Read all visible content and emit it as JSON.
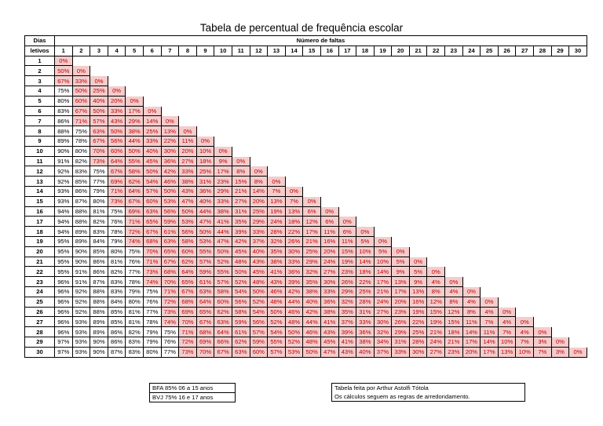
{
  "title": "Tabela de percentual de frequência escolar",
  "table": {
    "days_header_line1": "Dias",
    "days_header_line2": "letivos",
    "faltas_header": "Número de faltas",
    "columns": [
      "1",
      "2",
      "3",
      "4",
      "5",
      "6",
      "7",
      "8",
      "9",
      "10",
      "11",
      "12",
      "13",
      "14",
      "15",
      "16",
      "17",
      "18",
      "19",
      "20",
      "21",
      "22",
      "23",
      "24",
      "25",
      "26",
      "27",
      "28",
      "29",
      "30"
    ],
    "rows": [
      {
        "day": "1",
        "values": [
          "0%"
        ]
      },
      {
        "day": "2",
        "values": [
          "50%",
          "0%"
        ]
      },
      {
        "day": "3",
        "values": [
          "67%",
          "33%",
          "0%"
        ]
      },
      {
        "day": "4",
        "values": [
          "75%",
          "50%",
          "25%",
          "0%"
        ]
      },
      {
        "day": "5",
        "values": [
          "80%",
          "60%",
          "40%",
          "20%",
          "0%"
        ]
      },
      {
        "day": "6",
        "values": [
          "83%",
          "67%",
          "50%",
          "33%",
          "17%",
          "0%"
        ]
      },
      {
        "day": "7",
        "values": [
          "86%",
          "71%",
          "57%",
          "43%",
          "29%",
          "14%",
          "0%"
        ]
      },
      {
        "day": "8",
        "values": [
          "88%",
          "75%",
          "63%",
          "50%",
          "38%",
          "25%",
          "13%",
          "0%"
        ]
      },
      {
        "day": "9",
        "values": [
          "89%",
          "78%",
          "67%",
          "56%",
          "44%",
          "33%",
          "22%",
          "11%",
          "0%"
        ]
      },
      {
        "day": "10",
        "values": [
          "90%",
          "80%",
          "70%",
          "60%",
          "50%",
          "40%",
          "30%",
          "20%",
          "10%",
          "0%"
        ]
      },
      {
        "day": "11",
        "values": [
          "91%",
          "82%",
          "73%",
          "64%",
          "55%",
          "45%",
          "36%",
          "27%",
          "18%",
          "9%",
          "0%"
        ]
      },
      {
        "day": "12",
        "values": [
          "92%",
          "83%",
          "75%",
          "67%",
          "58%",
          "50%",
          "42%",
          "33%",
          "25%",
          "17%",
          "8%",
          "0%"
        ]
      },
      {
        "day": "13",
        "values": [
          "92%",
          "85%",
          "77%",
          "69%",
          "62%",
          "54%",
          "46%",
          "38%",
          "31%",
          "23%",
          "15%",
          "8%",
          "0%"
        ]
      },
      {
        "day": "14",
        "values": [
          "93%",
          "86%",
          "79%",
          "71%",
          "64%",
          "57%",
          "50%",
          "43%",
          "36%",
          "29%",
          "21%",
          "14%",
          "7%",
          "0%"
        ]
      },
      {
        "day": "15",
        "values": [
          "93%",
          "87%",
          "80%",
          "73%",
          "67%",
          "60%",
          "53%",
          "47%",
          "40%",
          "33%",
          "27%",
          "20%",
          "13%",
          "7%",
          "0%"
        ]
      },
      {
        "day": "16",
        "values": [
          "94%",
          "88%",
          "81%",
          "75%",
          "69%",
          "63%",
          "56%",
          "50%",
          "44%",
          "38%",
          "31%",
          "25%",
          "19%",
          "13%",
          "6%",
          "0%"
        ]
      },
      {
        "day": "17",
        "values": [
          "94%",
          "88%",
          "82%",
          "76%",
          "71%",
          "65%",
          "59%",
          "53%",
          "47%",
          "41%",
          "35%",
          "29%",
          "24%",
          "18%",
          "12%",
          "6%",
          "0%"
        ]
      },
      {
        "day": "18",
        "values": [
          "94%",
          "89%",
          "83%",
          "78%",
          "72%",
          "67%",
          "61%",
          "56%",
          "50%",
          "44%",
          "39%",
          "33%",
          "28%",
          "22%",
          "17%",
          "11%",
          "6%",
          "0%"
        ]
      },
      {
        "day": "19",
        "values": [
          "95%",
          "89%",
          "84%",
          "79%",
          "74%",
          "68%",
          "63%",
          "58%",
          "53%",
          "47%",
          "42%",
          "37%",
          "32%",
          "26%",
          "21%",
          "16%",
          "11%",
          "5%",
          "0%"
        ]
      },
      {
        "day": "20",
        "values": [
          "95%",
          "90%",
          "85%",
          "80%",
          "75%",
          "70%",
          "65%",
          "60%",
          "55%",
          "50%",
          "45%",
          "40%",
          "35%",
          "30%",
          "25%",
          "20%",
          "15%",
          "10%",
          "5%",
          "0%"
        ]
      },
      {
        "day": "21",
        "values": [
          "95%",
          "90%",
          "86%",
          "81%",
          "76%",
          "71%",
          "67%",
          "62%",
          "57%",
          "52%",
          "48%",
          "43%",
          "38%",
          "33%",
          "29%",
          "24%",
          "19%",
          "14%",
          "10%",
          "5%",
          "0%"
        ]
      },
      {
        "day": "22",
        "values": [
          "95%",
          "91%",
          "86%",
          "82%",
          "77%",
          "73%",
          "68%",
          "64%",
          "59%",
          "55%",
          "50%",
          "45%",
          "41%",
          "36%",
          "32%",
          "27%",
          "23%",
          "18%",
          "14%",
          "9%",
          "5%",
          "0%"
        ]
      },
      {
        "day": "23",
        "values": [
          "96%",
          "91%",
          "87%",
          "83%",
          "78%",
          "74%",
          "70%",
          "65%",
          "61%",
          "57%",
          "52%",
          "48%",
          "43%",
          "39%",
          "35%",
          "30%",
          "26%",
          "22%",
          "17%",
          "13%",
          "9%",
          "4%",
          "0%"
        ]
      },
      {
        "day": "24",
        "values": [
          "96%",
          "92%",
          "88%",
          "83%",
          "79%",
          "75%",
          "71%",
          "67%",
          "63%",
          "58%",
          "54%",
          "50%",
          "46%",
          "42%",
          "38%",
          "33%",
          "29%",
          "25%",
          "21%",
          "17%",
          "13%",
          "8%",
          "4%",
          "0%"
        ]
      },
      {
        "day": "25",
        "values": [
          "96%",
          "92%",
          "88%",
          "84%",
          "80%",
          "76%",
          "72%",
          "68%",
          "64%",
          "60%",
          "56%",
          "52%",
          "48%",
          "44%",
          "40%",
          "36%",
          "32%",
          "28%",
          "24%",
          "20%",
          "16%",
          "12%",
          "8%",
          "4%",
          "0%"
        ]
      },
      {
        "day": "26",
        "values": [
          "96%",
          "92%",
          "88%",
          "85%",
          "81%",
          "77%",
          "73%",
          "69%",
          "65%",
          "62%",
          "58%",
          "54%",
          "50%",
          "46%",
          "42%",
          "38%",
          "35%",
          "31%",
          "27%",
          "23%",
          "19%",
          "15%",
          "12%",
          "8%",
          "4%",
          "0%"
        ]
      },
      {
        "day": "27",
        "values": [
          "96%",
          "93%",
          "89%",
          "85%",
          "81%",
          "78%",
          "74%",
          "70%",
          "67%",
          "63%",
          "59%",
          "56%",
          "52%",
          "48%",
          "44%",
          "41%",
          "37%",
          "33%",
          "30%",
          "26%",
          "22%",
          "19%",
          "15%",
          "11%",
          "7%",
          "4%",
          "0%"
        ]
      },
      {
        "day": "28",
        "values": [
          "96%",
          "93%",
          "89%",
          "86%",
          "82%",
          "79%",
          "75%",
          "71%",
          "68%",
          "64%",
          "61%",
          "57%",
          "54%",
          "50%",
          "46%",
          "43%",
          "39%",
          "36%",
          "32%",
          "29%",
          "25%",
          "21%",
          "18%",
          "14%",
          "11%",
          "7%",
          "4%",
          "0%"
        ]
      },
      {
        "day": "29",
        "values": [
          "97%",
          "93%",
          "90%",
          "86%",
          "83%",
          "79%",
          "76%",
          "72%",
          "69%",
          "66%",
          "62%",
          "59%",
          "55%",
          "52%",
          "48%",
          "45%",
          "41%",
          "38%",
          "34%",
          "31%",
          "28%",
          "24%",
          "21%",
          "17%",
          "14%",
          "10%",
          "7%",
          "3%",
          "0%"
        ]
      },
      {
        "day": "30",
        "values": [
          "97%",
          "93%",
          "90%",
          "87%",
          "83%",
          "80%",
          "77%",
          "73%",
          "70%",
          "67%",
          "63%",
          "60%",
          "57%",
          "53%",
          "50%",
          "47%",
          "43%",
          "40%",
          "37%",
          "33%",
          "30%",
          "27%",
          "23%",
          "20%",
          "17%",
          "13%",
          "10%",
          "7%",
          "3%",
          "0%"
        ]
      }
    ]
  },
  "legend": [
    "BFA 85% 06 a 15 anos",
    "BVJ 75% 16 e 17 anos"
  ],
  "credits": [
    "Tabela feita por Arthur Astolfi Tótola",
    "Os cálculos seguem as regras de arredondamento."
  ],
  "colors": {
    "below_threshold_fill": "#f4cccc",
    "below_threshold_text": "#c00000",
    "grid_line": "#000000"
  },
  "highlight_threshold_percent": 75
}
